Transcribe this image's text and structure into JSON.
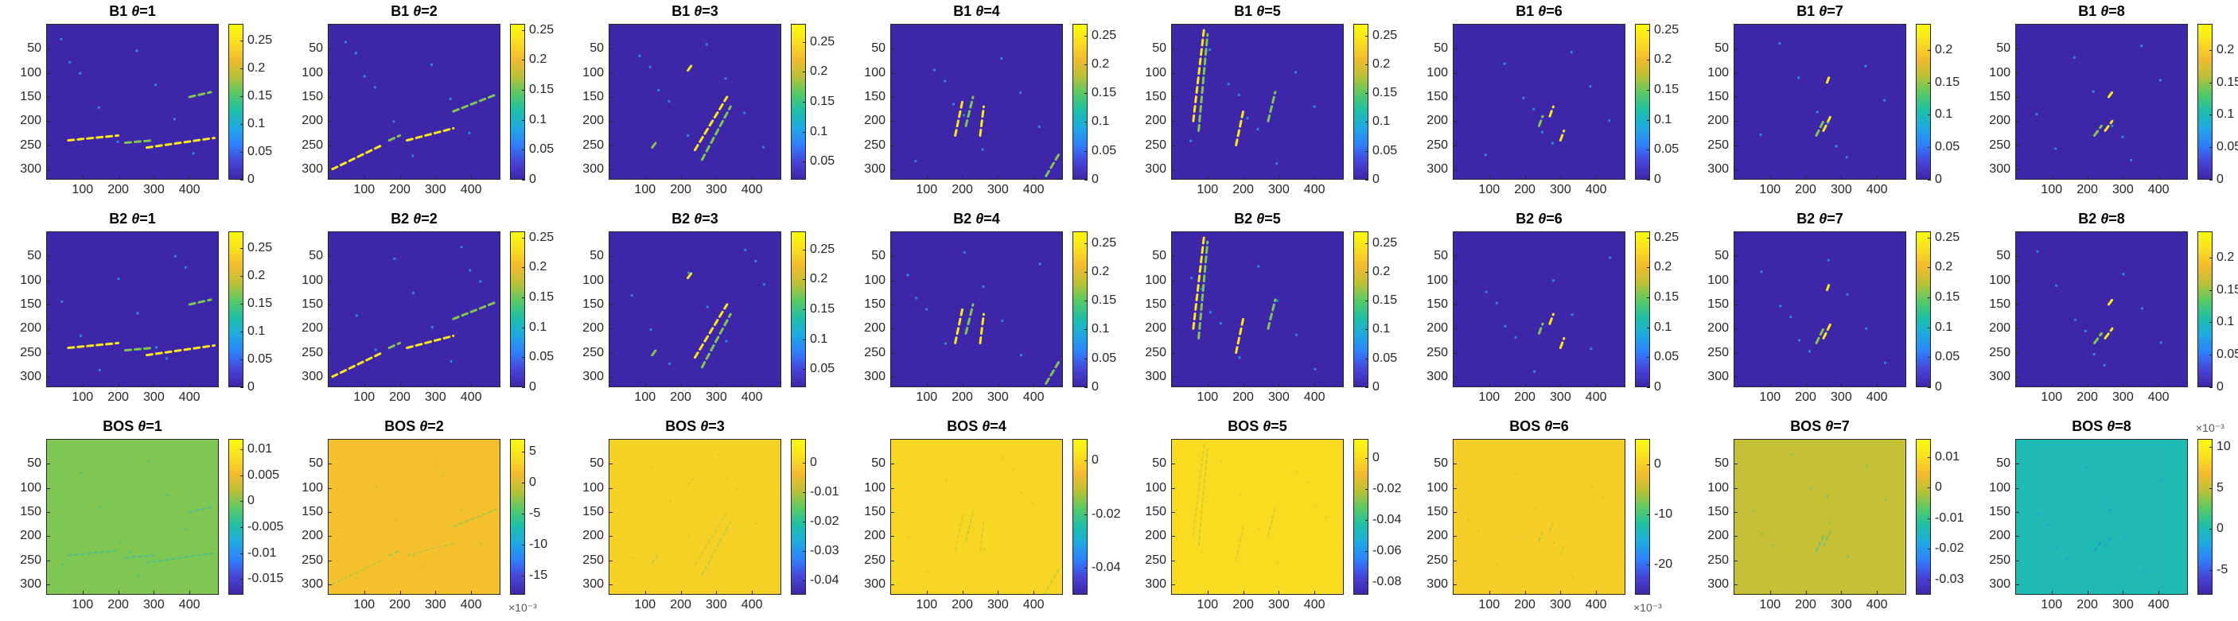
{
  "figure": {
    "rows": 3,
    "cols": 8,
    "colormap": "parula",
    "colormap_stops": [
      "#3e26a8",
      "#4745d7",
      "#2f7ffc",
      "#1fa9e1",
      "#1ebfa7",
      "#59c964",
      "#bbc137",
      "#f3ba2f",
      "#fadf21",
      "#f9fb0e"
    ]
  },
  "chart_data": [
    {
      "type": "heatmap",
      "title_prefix": "B1",
      "theta_label": "θ",
      "title_suffix": "=1",
      "xticks": [
        "100",
        "200",
        "300",
        "400"
      ],
      "yticks": [
        "50",
        "100",
        "150",
        "200",
        "250",
        "300"
      ],
      "colorbar_ticks": [
        "0",
        "0.05",
        "0.1",
        "0.15",
        "0.2",
        "0.25"
      ],
      "colorbar_exponent": "",
      "clim": [
        0,
        0.28
      ],
      "background_value": 0,
      "features": "bright diagonal streaks near y≈230–250 across x≈50–470; smaller streaks near y≈150"
    },
    {
      "type": "heatmap",
      "title_prefix": "B1",
      "theta_label": "θ",
      "title_suffix": "=2",
      "xticks": [
        "100",
        "200",
        "300",
        "400"
      ],
      "yticks": [
        "50",
        "100",
        "150",
        "200",
        "250",
        "300"
      ],
      "colorbar_ticks": [
        "0",
        "0.05",
        "0.1",
        "0.15",
        "0.2",
        "0.25"
      ],
      "colorbar_exponent": "",
      "clim": [
        0,
        0.26
      ],
      "background_value": 0,
      "features": "oblique streaks from lower-left to upper-right"
    },
    {
      "type": "heatmap",
      "title_prefix": "B1",
      "theta_label": "θ",
      "title_suffix": "=3",
      "xticks": [
        "100",
        "200",
        "300",
        "400"
      ],
      "yticks": [
        "50",
        "100",
        "150",
        "200",
        "250",
        "300"
      ],
      "colorbar_ticks": [
        "0.05",
        "0.1",
        "0.15",
        "0.2",
        "0.25"
      ],
      "colorbar_exponent": "",
      "clim": [
        0.02,
        0.28
      ],
      "background_value": 0.02,
      "features": "steep diagonal streaks around x≈230–330"
    },
    {
      "type": "heatmap",
      "title_prefix": "B1",
      "theta_label": "θ",
      "title_suffix": "=4",
      "xticks": [
        "100",
        "200",
        "300",
        "400"
      ],
      "yticks": [
        "50",
        "100",
        "150",
        "200",
        "250",
        "300"
      ],
      "colorbar_ticks": [
        "0",
        "0.05",
        "0.1",
        "0.15",
        "0.2",
        "0.25"
      ],
      "colorbar_exponent": "",
      "clim": [
        0,
        0.27
      ],
      "background_value": 0,
      "features": "near-vertical short streaks"
    },
    {
      "type": "heatmap",
      "title_prefix": "B1",
      "theta_label": "θ",
      "title_suffix": "=5",
      "xticks": [
        "100",
        "200",
        "300",
        "400"
      ],
      "yticks": [
        "50",
        "100",
        "150",
        "200",
        "250",
        "300"
      ],
      "colorbar_ticks": [
        "0",
        "0.05",
        "0.1",
        "0.15",
        "0.2",
        "0.25"
      ],
      "colorbar_exponent": "",
      "clim": [
        0,
        0.27
      ],
      "background_value": 0,
      "features": "long vertical bright lines near x≈60–80"
    },
    {
      "type": "heatmap",
      "title_prefix": "B1",
      "theta_label": "θ",
      "title_suffix": "=6",
      "xticks": [
        "100",
        "200",
        "300",
        "400"
      ],
      "yticks": [
        "50",
        "100",
        "150",
        "200",
        "250",
        "300"
      ],
      "colorbar_ticks": [
        "0",
        "0.05",
        "0.1",
        "0.15",
        "0.2",
        "0.25"
      ],
      "colorbar_exponent": "",
      "clim": [
        0,
        0.26
      ],
      "background_value": 0,
      "features": "sparse small blobs around x≈250–280"
    },
    {
      "type": "heatmap",
      "title_prefix": "B1",
      "theta_label": "θ",
      "title_suffix": "=7",
      "xticks": [
        "100",
        "200",
        "300",
        "400"
      ],
      "yticks": [
        "50",
        "100",
        "150",
        "200",
        "250",
        "300"
      ],
      "colorbar_ticks": [
        "0",
        "0.05",
        "0.1",
        "0.15",
        "0.2"
      ],
      "colorbar_exponent": "",
      "clim": [
        0,
        0.24
      ],
      "background_value": 0,
      "features": "sparse small blobs"
    },
    {
      "type": "heatmap",
      "title_prefix": "B1",
      "theta_label": "θ",
      "title_suffix": "=8",
      "xticks": [
        "100",
        "200",
        "300",
        "400"
      ],
      "yticks": [
        "50",
        "100",
        "150",
        "200",
        "250",
        "300"
      ],
      "colorbar_ticks": [
        "0",
        "0.05",
        "0.1",
        "0.15",
        "0.2"
      ],
      "colorbar_exponent": "",
      "clim": [
        0,
        0.24
      ],
      "background_value": 0,
      "features": "sparse small blobs"
    },
    {
      "type": "heatmap",
      "title_prefix": "B2",
      "theta_label": "θ",
      "title_suffix": "=1",
      "xticks": [
        "100",
        "200",
        "300",
        "400"
      ],
      "yticks": [
        "50",
        "100",
        "150",
        "200",
        "250",
        "300"
      ],
      "colorbar_ticks": [
        "0",
        "0.05",
        "0.1",
        "0.15",
        "0.2",
        "0.25"
      ],
      "colorbar_exponent": "",
      "clim": [
        0,
        0.28
      ],
      "background_value": 0,
      "features": "bright diagonal streaks near y≈230–250"
    },
    {
      "type": "heatmap",
      "title_prefix": "B2",
      "theta_label": "θ",
      "title_suffix": "=2",
      "xticks": [
        "100",
        "200",
        "300",
        "400"
      ],
      "yticks": [
        "50",
        "100",
        "150",
        "200",
        "250",
        "300"
      ],
      "colorbar_ticks": [
        "0",
        "0.05",
        "0.1",
        "0.15",
        "0.2",
        "0.25"
      ],
      "colorbar_exponent": "",
      "clim": [
        0,
        0.26
      ],
      "background_value": 0,
      "features": "oblique streaks"
    },
    {
      "type": "heatmap",
      "title_prefix": "B2",
      "theta_label": "θ",
      "title_suffix": "=3",
      "xticks": [
        "100",
        "200",
        "300",
        "400"
      ],
      "yticks": [
        "50",
        "100",
        "150",
        "200",
        "250",
        "300"
      ],
      "colorbar_ticks": [
        "0.05",
        "0.1",
        "0.15",
        "0.2",
        "0.25"
      ],
      "colorbar_exponent": "",
      "clim": [
        0.02,
        0.28
      ],
      "background_value": 0.02,
      "features": "steep diagonal streaks"
    },
    {
      "type": "heatmap",
      "title_prefix": "B2",
      "theta_label": "θ",
      "title_suffix": "=4",
      "xticks": [
        "100",
        "200",
        "300",
        "400"
      ],
      "yticks": [
        "50",
        "100",
        "150",
        "200",
        "250",
        "300"
      ],
      "colorbar_ticks": [
        "0",
        "0.05",
        "0.1",
        "0.15",
        "0.2",
        "0.25"
      ],
      "colorbar_exponent": "",
      "clim": [
        0,
        0.27
      ],
      "background_value": 0,
      "features": "near-vertical short streaks"
    },
    {
      "type": "heatmap",
      "title_prefix": "B2",
      "theta_label": "θ",
      "title_suffix": "=5",
      "xticks": [
        "100",
        "200",
        "300",
        "400"
      ],
      "yticks": [
        "50",
        "100",
        "150",
        "200",
        "250",
        "300"
      ],
      "colorbar_ticks": [
        "0",
        "0.05",
        "0.1",
        "0.15",
        "0.2",
        "0.25"
      ],
      "colorbar_exponent": "",
      "clim": [
        0,
        0.27
      ],
      "background_value": 0,
      "features": "long vertical bright lines"
    },
    {
      "type": "heatmap",
      "title_prefix": "B2",
      "theta_label": "θ",
      "title_suffix": "=6",
      "xticks": [
        "100",
        "200",
        "300",
        "400"
      ],
      "yticks": [
        "50",
        "100",
        "150",
        "200",
        "250",
        "300"
      ],
      "colorbar_ticks": [
        "0",
        "0.05",
        "0.1",
        "0.15",
        "0.2",
        "0.25"
      ],
      "colorbar_exponent": "",
      "clim": [
        0,
        0.26
      ],
      "background_value": 0,
      "features": "sparse small blobs"
    },
    {
      "type": "heatmap",
      "title_prefix": "B2",
      "theta_label": "θ",
      "title_suffix": "=7",
      "xticks": [
        "100",
        "200",
        "300",
        "400"
      ],
      "yticks": [
        "50",
        "100",
        "150",
        "200",
        "250",
        "300"
      ],
      "colorbar_ticks": [
        "0",
        "0.05",
        "0.1",
        "0.15",
        "0.2",
        "0.25"
      ],
      "colorbar_exponent": "",
      "clim": [
        0,
        0.26
      ],
      "background_value": 0,
      "features": "sparse small blobs"
    },
    {
      "type": "heatmap",
      "title_prefix": "B2",
      "theta_label": "θ",
      "title_suffix": "=8",
      "xticks": [
        "100",
        "200",
        "300",
        "400"
      ],
      "yticks": [
        "50",
        "100",
        "150",
        "200",
        "250",
        "300"
      ],
      "colorbar_ticks": [
        "0",
        "0.05",
        "0.1",
        "0.15",
        "0.2"
      ],
      "colorbar_exponent": "",
      "clim": [
        0,
        0.24
      ],
      "background_value": 0,
      "features": "sparse small blobs"
    },
    {
      "type": "heatmap",
      "title_prefix": "BOS",
      "theta_label": "θ",
      "title_suffix": "=1",
      "xticks": [
        "100",
        "200",
        "300",
        "400"
      ],
      "yticks": [
        "50",
        "100",
        "150",
        "200",
        "250",
        "300"
      ],
      "colorbar_ticks": [
        "-0.015",
        "-0.01",
        "-0.005",
        "0",
        "0.005",
        "0.01"
      ],
      "colorbar_exponent": "",
      "clim": [
        -0.018,
        0.012
      ],
      "background_value": 0,
      "features": "nearly uniform field with faint streaks"
    },
    {
      "type": "heatmap",
      "title_prefix": "BOS",
      "theta_label": "θ",
      "title_suffix": "=2",
      "xticks": [
        "100",
        "200",
        "300",
        "400"
      ],
      "yticks": [
        "50",
        "100",
        "150",
        "200",
        "250",
        "300"
      ],
      "colorbar_ticks": [
        "-15",
        "-10",
        "-5",
        "0",
        "5"
      ],
      "colorbar_exponent": "×10⁻³",
      "clim": [
        -18,
        7
      ],
      "background_value": 2,
      "features": "nearly uniform field with faint streaks"
    },
    {
      "type": "heatmap",
      "title_prefix": "BOS",
      "theta_label": "θ",
      "title_suffix": "=3",
      "xticks": [
        "100",
        "200",
        "300",
        "400"
      ],
      "yticks": [
        "50",
        "100",
        "150",
        "200",
        "250",
        "300"
      ],
      "colorbar_ticks": [
        "-0.04",
        "-0.03",
        "-0.02",
        "-0.01",
        "0"
      ],
      "colorbar_exponent": "",
      "clim": [
        -0.045,
        0.008
      ],
      "background_value": 0,
      "features": "nearly uniform field with faint streaks"
    },
    {
      "type": "heatmap",
      "title_prefix": "BOS",
      "theta_label": "θ",
      "title_suffix": "=4",
      "xticks": [
        "100",
        "200",
        "300",
        "400"
      ],
      "yticks": [
        "50",
        "100",
        "150",
        "200",
        "250",
        "300"
      ],
      "colorbar_ticks": [
        "-0.04",
        "-0.02",
        "0"
      ],
      "colorbar_exponent": "",
      "clim": [
        -0.05,
        0.008
      ],
      "background_value": 0,
      "features": "nearly uniform field with faint streaks"
    },
    {
      "type": "heatmap",
      "title_prefix": "BOS",
      "theta_label": "θ",
      "title_suffix": "=5",
      "xticks": [
        "100",
        "200",
        "300",
        "400"
      ],
      "yticks": [
        "50",
        "100",
        "150",
        "200",
        "250",
        "300"
      ],
      "colorbar_ticks": [
        "-0.08",
        "-0.06",
        "-0.04",
        "-0.02",
        "0"
      ],
      "colorbar_exponent": "",
      "clim": [
        -0.088,
        0.012
      ],
      "background_value": 0,
      "features": "nearly uniform field with faint streaks"
    },
    {
      "type": "heatmap",
      "title_prefix": "BOS",
      "theta_label": "θ",
      "title_suffix": "=6",
      "xticks": [
        "100",
        "200",
        "300",
        "400"
      ],
      "yticks": [
        "50",
        "100",
        "150",
        "200",
        "250",
        "300"
      ],
      "colorbar_ticks": [
        "-20",
        "-10",
        "0"
      ],
      "colorbar_exponent": "×10⁻³",
      "clim": [
        -26,
        5
      ],
      "background_value": 0,
      "features": "nearly uniform field with faint blobs"
    },
    {
      "type": "heatmap",
      "title_prefix": "BOS",
      "theta_label": "θ",
      "title_suffix": "=7",
      "xticks": [
        "100",
        "200",
        "300",
        "400"
      ],
      "yticks": [
        "50",
        "100",
        "150",
        "200",
        "250",
        "300"
      ],
      "colorbar_ticks": [
        "-0.03",
        "-0.02",
        "-0.01",
        "0",
        "0.01"
      ],
      "colorbar_exponent": "",
      "clim": [
        -0.035,
        0.016
      ],
      "background_value": 0,
      "features": "nearly uniform field"
    },
    {
      "type": "heatmap",
      "title_prefix": "BOS",
      "theta_label": "θ",
      "title_suffix": "=8",
      "xticks": [
        "100",
        "200",
        "300",
        "400"
      ],
      "yticks": [
        "50",
        "100",
        "150",
        "200",
        "250",
        "300"
      ],
      "colorbar_ticks": [
        "-5",
        "0",
        "5",
        "10"
      ],
      "colorbar_exponent": "×10⁻³",
      "clim": [
        -8,
        11
      ],
      "background_value": 0,
      "features": "nearly uniform field"
    }
  ]
}
